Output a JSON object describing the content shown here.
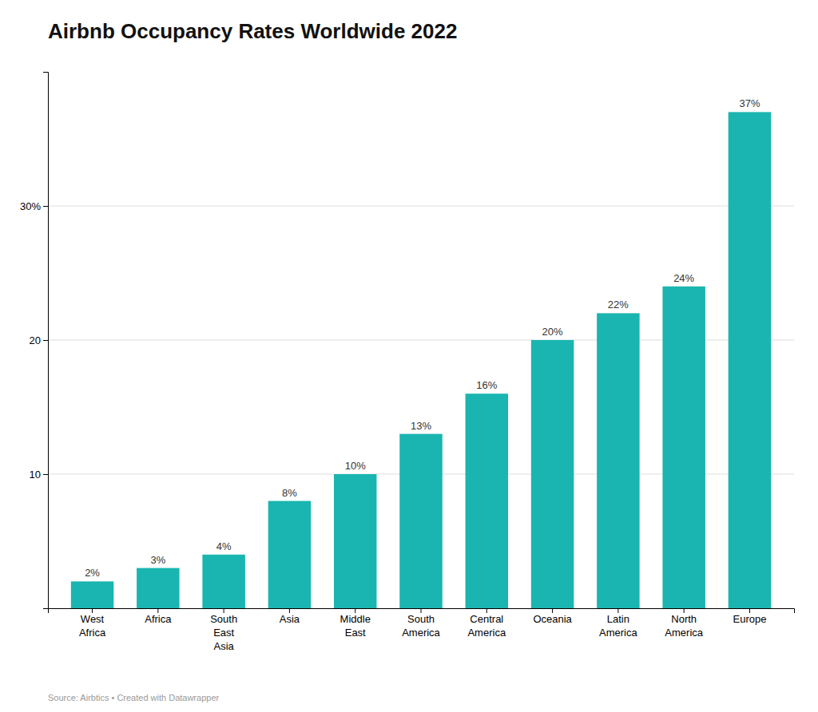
{
  "chart_data": {
    "type": "bar",
    "title": "Airbnb Occupancy Rates Worldwide 2022",
    "categories": [
      "West\nAfrica",
      "Africa",
      "South\nEast\nAsia",
      "Asia",
      "Middle\nEast",
      "South\nAmerica",
      "Central\nAmerica",
      "Oceania",
      "Latin\nAmerica",
      "North\nAmerica",
      "Europe"
    ],
    "values": [
      2,
      3,
      4,
      8,
      10,
      13,
      16,
      20,
      22,
      24,
      37
    ],
    "value_labels": [
      "2%",
      "3%",
      "4%",
      "8%",
      "10%",
      "13%",
      "16%",
      "20%",
      "22%",
      "24%",
      "37%"
    ],
    "data_labels": true,
    "color": "#1ab5b0",
    "ylim": [
      0,
      40
    ],
    "yticks": [
      10,
      20,
      {
        "value": 30,
        "label": "30%"
      }
    ],
    "grid": true,
    "annotations": [
      "Source: Airbtics • Created with Datawrapper"
    ]
  }
}
